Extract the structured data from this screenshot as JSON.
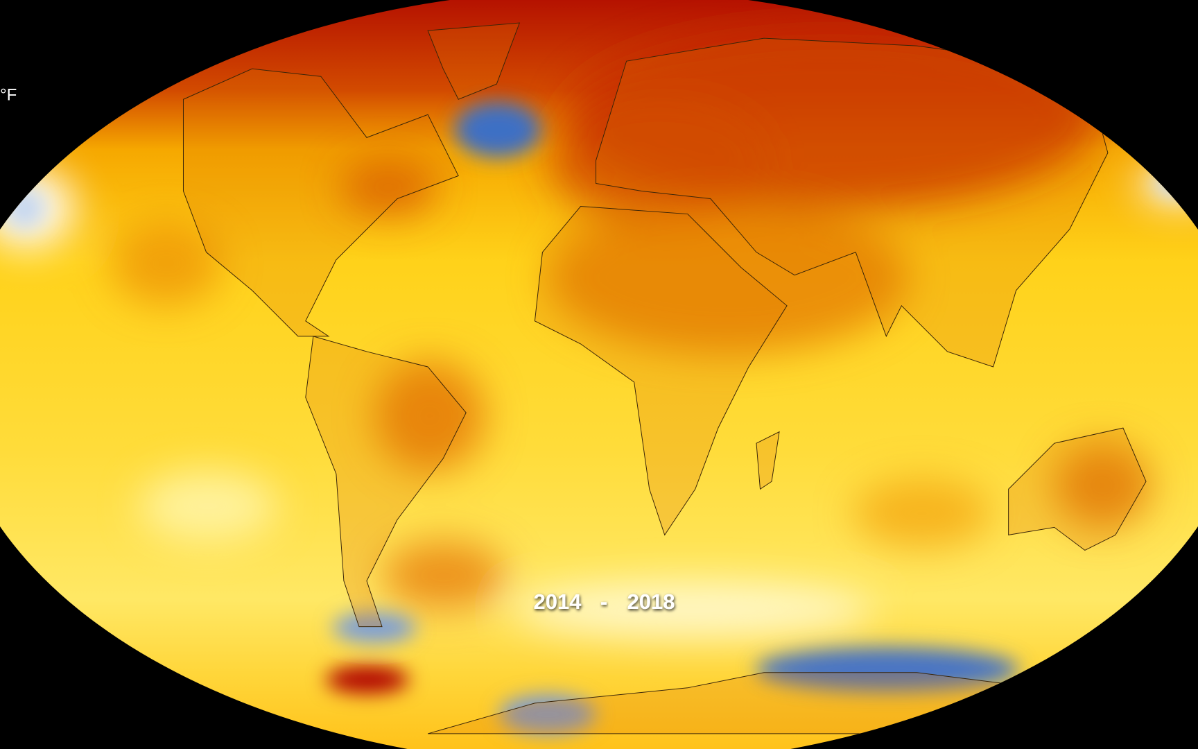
{
  "legend_unit": "°F",
  "date_range": {
    "start": "2014",
    "separator": "-",
    "end": "2018"
  }
}
